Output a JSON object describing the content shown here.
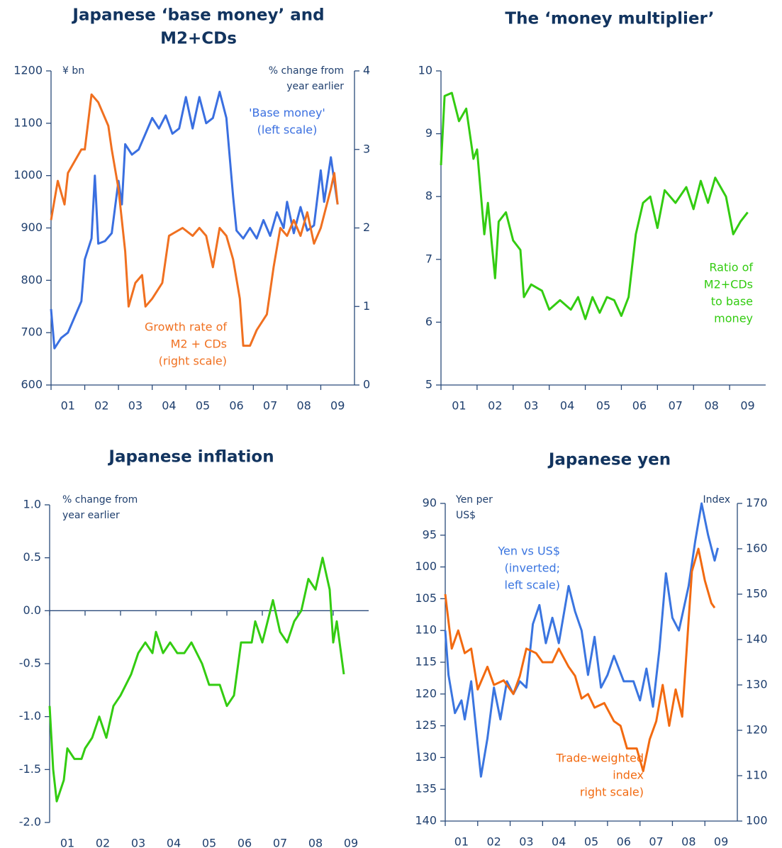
{
  "chart_data": [
    {
      "type": "line",
      "title": [
        "Japanese ‘base money’ and",
        "M2+CDs"
      ],
      "units": [
        "¥ bn"
      ],
      "units_right": [
        "% change from",
        "year earlier"
      ],
      "xlim": [
        2001,
        2010
      ],
      "xticks": [
        {
          "value": 2001.5,
          "label": "01"
        },
        {
          "value": 2002.5,
          "label": "02"
        },
        {
          "value": 2003.5,
          "label": "03"
        },
        {
          "value": 2004.5,
          "label": "04"
        },
        {
          "value": 2005.5,
          "label": "05"
        },
        {
          "value": 2006.5,
          "label": "06"
        },
        {
          "value": 2007.5,
          "label": "07"
        },
        {
          "value": 2008.5,
          "label": "08"
        },
        {
          "value": 2009.5,
          "label": "09"
        }
      ],
      "ylim": [
        600,
        1200
      ],
      "yticks": [
        600,
        700,
        800,
        900,
        1000,
        1100,
        1200
      ],
      "y2lim": [
        0,
        4
      ],
      "y2ticks": [
        0,
        1,
        2,
        3,
        4
      ],
      "series": [
        {
          "name": [
            "'Base money'",
            "(left scale)"
          ],
          "color": "#3a6fe0",
          "x": [
            2001.0,
            2001.1,
            2001.3,
            2001.5,
            2001.7,
            2001.9,
            2002.0,
            2002.2,
            2002.3,
            2002.4,
            2002.6,
            2002.8,
            2003.0,
            2003.1,
            2003.2,
            2003.4,
            2003.6,
            2003.8,
            2004.0,
            2004.2,
            2004.4,
            2004.6,
            2004.8,
            2005.0,
            2005.2,
            2005.4,
            2005.6,
            2005.8,
            2006.0,
            2006.2,
            2006.4,
            2006.5,
            2006.7,
            2006.9,
            2007.1,
            2007.3,
            2007.5,
            2007.7,
            2007.9,
            2008.0,
            2008.2,
            2008.4,
            2008.6,
            2008.8,
            2009.0,
            2009.1,
            2009.3,
            2009.5
          ],
          "values": [
            745,
            670,
            690,
            700,
            730,
            760,
            840,
            880,
            1000,
            870,
            875,
            890,
            990,
            945,
            1060,
            1040,
            1050,
            1080,
            1110,
            1090,
            1115,
            1080,
            1090,
            1150,
            1090,
            1150,
            1100,
            1110,
            1160,
            1110,
            960,
            895,
            880,
            900,
            880,
            915,
            885,
            930,
            900,
            950,
            890,
            940,
            895,
            905,
            1010,
            950,
            1035,
            945
          ]
        },
        {
          "name": [
            "Growth rate of",
            "M2 + CDs",
            "(right scale)"
          ],
          "color": "#f07020",
          "axis": "y2",
          "x": [
            2001.0,
            2001.2,
            2001.4,
            2001.5,
            2001.9,
            2002.0,
            2002.2,
            2002.4,
            2002.7,
            2002.8,
            2003.0,
            2003.2,
            2003.3,
            2003.5,
            2003.7,
            2003.8,
            2004.0,
            2004.3,
            2004.5,
            2004.7,
            2004.9,
            2005.2,
            2005.4,
            2005.6,
            2005.8,
            2006.0,
            2006.2,
            2006.4,
            2006.6,
            2006.7,
            2006.9,
            2007.1,
            2007.4,
            2007.6,
            2007.8,
            2008.0,
            2008.2,
            2008.4,
            2008.6,
            2008.8,
            2009.0,
            2009.3,
            2009.4,
            2009.5
          ],
          "values": [
            2.1,
            2.6,
            2.3,
            2.7,
            3.0,
            3.0,
            3.7,
            3.6,
            3.3,
            3.0,
            2.5,
            1.7,
            1.0,
            1.3,
            1.4,
            1.0,
            1.1,
            1.3,
            1.9,
            1.95,
            2.0,
            1.9,
            2.0,
            1.9,
            1.5,
            2.0,
            1.9,
            1.6,
            1.1,
            0.5,
            0.5,
            0.7,
            0.9,
            1.5,
            2.0,
            1.9,
            2.1,
            1.9,
            2.2,
            1.8,
            2.0,
            2.5,
            2.7,
            2.3
          ]
        }
      ]
    },
    {
      "type": "line",
      "title": [
        "The ‘money multiplier’"
      ],
      "xlim": [
        2001,
        2010
      ],
      "xticks": [
        {
          "value": 2001.5,
          "label": "01"
        },
        {
          "value": 2002.5,
          "label": "02"
        },
        {
          "value": 2003.5,
          "label": "03"
        },
        {
          "value": 2004.5,
          "label": "04"
        },
        {
          "value": 2005.5,
          "label": "05"
        },
        {
          "value": 2006.5,
          "label": "06"
        },
        {
          "value": 2007.5,
          "label": "07"
        },
        {
          "value": 2008.5,
          "label": "08"
        },
        {
          "value": 2009.5,
          "label": "09"
        }
      ],
      "ylim": [
        5,
        10
      ],
      "yticks": [
        5,
        6,
        7,
        8,
        9,
        10
      ],
      "series": [
        {
          "name": [
            "Ratio of",
            "M2+CDs",
            "to base",
            "money"
          ],
          "color": "#33cc11",
          "x": [
            2001.0,
            2001.1,
            2001.3,
            2001.5,
            2001.7,
            2001.9,
            2002.0,
            2002.2,
            2002.3,
            2002.5,
            2002.6,
            2002.8,
            2003.0,
            2003.2,
            2003.3,
            2003.5,
            2003.8,
            2004.0,
            2004.3,
            2004.6,
            2004.8,
            2005.0,
            2005.2,
            2005.4,
            2005.6,
            2005.8,
            2006.0,
            2006.2,
            2006.4,
            2006.6,
            2006.8,
            2007.0,
            2007.2,
            2007.5,
            2007.8,
            2008.0,
            2008.2,
            2008.4,
            2008.6,
            2008.9,
            2009.1,
            2009.3,
            2009.5
          ],
          "values": [
            8.5,
            9.6,
            9.65,
            9.2,
            9.4,
            8.6,
            8.75,
            7.4,
            7.9,
            6.7,
            7.6,
            7.75,
            7.3,
            7.15,
            6.4,
            6.6,
            6.5,
            6.2,
            6.35,
            6.2,
            6.4,
            6.05,
            6.4,
            6.15,
            6.4,
            6.35,
            6.1,
            6.4,
            7.4,
            7.9,
            8.0,
            7.5,
            8.1,
            7.9,
            8.15,
            7.8,
            8.25,
            7.9,
            8.3,
            8.0,
            7.4,
            7.6,
            7.75
          ]
        }
      ]
    },
    {
      "type": "line",
      "title": [
        "Japanese inflation"
      ],
      "units": [
        "% change from",
        "year earlier"
      ],
      "xlim": [
        2001,
        2010
      ],
      "xticks": [
        {
          "value": 2001.5,
          "label": "01"
        },
        {
          "value": 2002.5,
          "label": "02"
        },
        {
          "value": 2003.5,
          "label": "03"
        },
        {
          "value": 2004.5,
          "label": "04"
        },
        {
          "value": 2005.5,
          "label": "05"
        },
        {
          "value": 2006.5,
          "label": "06"
        },
        {
          "value": 2007.5,
          "label": "07"
        },
        {
          "value": 2008.5,
          "label": "08"
        },
        {
          "value": 2009.5,
          "label": "09"
        }
      ],
      "ylim": [
        -2,
        1
      ],
      "yticks": [
        {
          "value": -2,
          "label": "-2.0"
        },
        {
          "value": -1.5,
          "label": "-1.5"
        },
        {
          "value": -1,
          "label": "-1.0"
        },
        -0.5,
        {
          "value": 0,
          "label": "0.0"
        },
        0.5,
        {
          "value": 1,
          "label": "1.0"
        }
      ],
      "series": [
        {
          "color": "#33cc11",
          "x": [
            2001.0,
            2001.1,
            2001.2,
            2001.4,
            2001.5,
            2001.7,
            2001.9,
            2002.0,
            2002.2,
            2002.4,
            2002.6,
            2002.8,
            2003.0,
            2003.3,
            2003.5,
            2003.7,
            2003.9,
            2004.0,
            2004.2,
            2004.4,
            2004.6,
            2004.8,
            2005.0,
            2005.3,
            2005.5,
            2005.8,
            2006.0,
            2006.2,
            2006.4,
            2006.7,
            2006.8,
            2007.0,
            2007.3,
            2007.5,
            2007.7,
            2007.9,
            2008.1,
            2008.3,
            2008.5,
            2008.7,
            2008.9,
            2009.0,
            2009.1,
            2009.3
          ],
          "values": [
            -0.9,
            -1.5,
            -1.8,
            -1.6,
            -1.3,
            -1.4,
            -1.4,
            -1.3,
            -1.2,
            -1.0,
            -1.2,
            -0.9,
            -0.8,
            -0.6,
            -0.4,
            -0.3,
            -0.4,
            -0.2,
            -0.4,
            -0.3,
            -0.4,
            -0.4,
            -0.3,
            -0.5,
            -0.7,
            -0.7,
            -0.9,
            -0.8,
            -0.3,
            -0.3,
            -0.1,
            -0.3,
            0.1,
            -0.2,
            -0.3,
            -0.1,
            0.0,
            0.3,
            0.2,
            0.5,
            0.2,
            -0.3,
            -0.1,
            -0.6
          ]
        }
      ]
    },
    {
      "type": "line",
      "title": [
        "Japanese yen"
      ],
      "units": [
        "Yen per",
        "US$"
      ],
      "units_right": [
        "Index"
      ],
      "xlim": [
        2001,
        2010
      ],
      "xticks": [
        {
          "value": 2001.5,
          "label": "01"
        },
        {
          "value": 2002.5,
          "label": "02"
        },
        {
          "value": 2003.5,
          "label": "03"
        },
        {
          "value": 2004.5,
          "label": "04"
        },
        {
          "value": 2005.5,
          "label": "05"
        },
        {
          "value": 2006.5,
          "label": "06"
        },
        {
          "value": 2007.5,
          "label": "07"
        },
        {
          "value": 2008.5,
          "label": "08"
        },
        {
          "value": 2009.5,
          "label": "09"
        }
      ],
      "ylim": [
        140,
        90
      ],
      "yticks": [
        140,
        135,
        130,
        125,
        120,
        115,
        110,
        105,
        100,
        95,
        90
      ],
      "y2lim": [
        100,
        170
      ],
      "y2ticks": [
        100,
        110,
        120,
        130,
        140,
        150,
        160,
        170
      ],
      "series": [
        {
          "name": [
            "Yen vs US$",
            "(inverted;",
            "left scale)"
          ],
          "color": "#3a75e0",
          "x": [
            2001.0,
            2001.1,
            2001.3,
            2001.5,
            2001.6,
            2001.8,
            2002.0,
            2002.1,
            2002.3,
            2002.5,
            2002.7,
            2002.9,
            2003.1,
            2003.3,
            2003.5,
            2003.7,
            2003.9,
            2004.1,
            2004.3,
            2004.5,
            2004.8,
            2005.0,
            2005.2,
            2005.4,
            2005.6,
            2005.8,
            2006.0,
            2006.2,
            2006.5,
            2006.8,
            2007.0,
            2007.2,
            2007.4,
            2007.6,
            2007.8,
            2008.0,
            2008.2,
            2008.5,
            2008.7,
            2008.9,
            2009.1,
            2009.3,
            2009.4
          ],
          "values": [
            110,
            117,
            123,
            121,
            124,
            118,
            128,
            133,
            127,
            119,
            124,
            118,
            120,
            118,
            119,
            109,
            106,
            112,
            108,
            112,
            103,
            107,
            110,
            117,
            111,
            119,
            117,
            114,
            118,
            118,
            121,
            116,
            122,
            113,
            101,
            108,
            110,
            103,
            96,
            90,
            95,
            99,
            97
          ]
        },
        {
          "name": [
            "Trade-weighted",
            "index",
            "right scale)"
          ],
          "color": "#f26a10",
          "axis": "y2",
          "x": [
            2001.0,
            2001.2,
            2001.4,
            2001.6,
            2001.8,
            2002.0,
            2002.3,
            2002.5,
            2002.8,
            2003.1,
            2003.3,
            2003.5,
            2003.8,
            2004.0,
            2004.3,
            2004.5,
            2004.8,
            2005.0,
            2005.2,
            2005.4,
            2005.6,
            2005.9,
            2006.2,
            2006.4,
            2006.6,
            2006.9,
            2007.1,
            2007.3,
            2007.5,
            2007.7,
            2007.9,
            2008.1,
            2008.3,
            2008.6,
            2008.8,
            2009.0,
            2009.2,
            2009.3
          ],
          "values": [
            150,
            138,
            142,
            137,
            138,
            129,
            134,
            130,
            131,
            128,
            132,
            138,
            137,
            135,
            135,
            138,
            134,
            132,
            127,
            128,
            125,
            126,
            122,
            121,
            116,
            116,
            111,
            118,
            122,
            130,
            121,
            129,
            123,
            155,
            160,
            153,
            148,
            147
          ]
        }
      ]
    }
  ]
}
